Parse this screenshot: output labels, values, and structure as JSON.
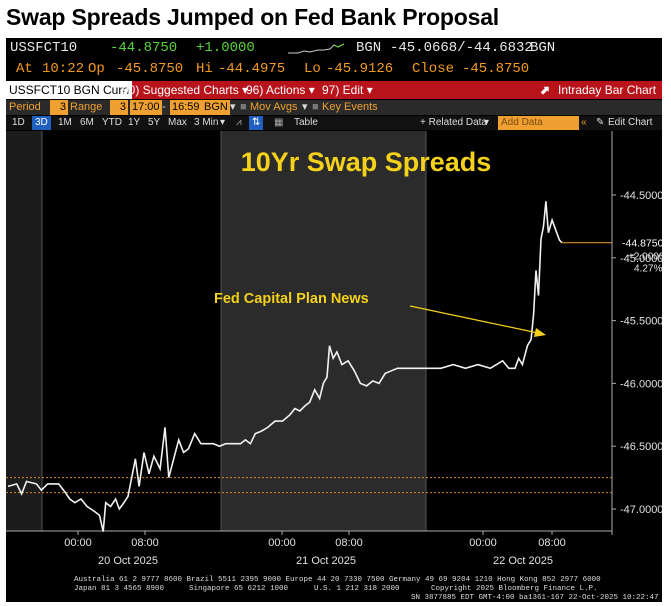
{
  "headline": "Swap Spreads Jumped on Fed Bank Proposal",
  "quote": {
    "ticker": "USSFCT10",
    "last": "-44.8750",
    "change": "+1.0000",
    "bgn_label": "BGN",
    "bid_ask": "-45.0668/-44.6832",
    "bgn_label2": "BGN",
    "at_label": "At",
    "time": "10:22",
    "op_label": "Op",
    "open": "-45.8750",
    "hi_label": "Hi",
    "high": "-44.4975",
    "lo_label": "Lo",
    "low": "-45.9126",
    "close_label": "Close",
    "close": "-45.8750"
  },
  "toolbar": {
    "security": "USSFCT10 BGN Curn",
    "suggested": "90) Suggested Charts",
    "actions": "96) Actions",
    "edit": "97) Edit",
    "view": "Intraday Bar Chart"
  },
  "options": {
    "period_label": "Period",
    "period_value": "3",
    "range_label": "Range",
    "range_value": "3",
    "start_time": "17:00",
    "end_time": "16:59",
    "source": "BGN",
    "mov_avgs": "Mov Avgs",
    "key_events": "Key Events"
  },
  "tabs": [
    "1D",
    "3D",
    "1M",
    "6M",
    "YTD",
    "1Y",
    "5Y",
    "Max",
    "3 Min"
  ],
  "active_tab": "3D",
  "tab_table": "Table",
  "related_data": "+ Related Data",
  "add_data": "Add Data",
  "edit_chart": "Edit Chart",
  "chart_data": {
    "type": "line",
    "title": "10Yr Swap Spreads",
    "annotation": "Fed Capital Plan News",
    "ylim": [
      -47.0,
      -44.3
    ],
    "y_ticks": [
      "-44.5000",
      "-45.0000",
      "-45.5000",
      "-46.0000",
      "-46.5000",
      "-47.0000"
    ],
    "x_ticks": [
      "00:00",
      "08:00",
      "00:00",
      "08:00",
      "00:00",
      "08:00"
    ],
    "day_labels": [
      "20 Oct 2025",
      "21 Oct 2025",
      "22 Oct 2025"
    ],
    "last_value_label": "-44.8750",
    "change_label": "+2.0000",
    "pct_label": "4.27%",
    "ref_lines": [
      -46.75,
      -46.87
    ],
    "series": [
      {
        "values": [
          [
            0,
            -46.82
          ],
          [
            7,
            -46.8
          ],
          [
            11,
            -46.88
          ],
          [
            15,
            -46.78
          ],
          [
            23,
            -46.8
          ],
          [
            27,
            -46.85
          ],
          [
            32,
            -46.8
          ],
          [
            41,
            -46.8
          ],
          [
            45,
            -46.85
          ],
          [
            50,
            -46.92
          ],
          [
            54,
            -46.95
          ],
          [
            59,
            -46.92
          ],
          [
            64,
            -46.98
          ],
          [
            70,
            -47.02
          ],
          [
            74,
            -47.05
          ],
          [
            77,
            -47.18
          ],
          [
            79,
            -46.95
          ],
          [
            83,
            -46.98
          ],
          [
            87,
            -46.92
          ],
          [
            90,
            -47.0
          ],
          [
            93,
            -46.96
          ],
          [
            97,
            -46.9
          ],
          [
            100,
            -46.75
          ],
          [
            103,
            -46.6
          ],
          [
            106,
            -46.82
          ],
          [
            110,
            -46.55
          ],
          [
            114,
            -46.72
          ],
          [
            118,
            -46.58
          ],
          [
            123,
            -46.68
          ],
          [
            127,
            -46.35
          ],
          [
            130,
            -46.75
          ],
          [
            134,
            -46.6
          ],
          [
            138,
            -46.45
          ],
          [
            142,
            -46.55
          ],
          [
            146,
            -46.52
          ],
          [
            151,
            -46.4
          ],
          [
            156,
            -46.48
          ],
          [
            161,
            -46.48
          ],
          [
            166,
            -46.48
          ],
          [
            171,
            -46.5
          ],
          [
            176,
            -46.48
          ],
          [
            182,
            -46.48
          ],
          [
            188,
            -46.48
          ],
          [
            192,
            -46.45
          ],
          [
            196,
            -46.48
          ],
          [
            200,
            -46.4
          ],
          [
            205,
            -46.38
          ],
          [
            210,
            -46.35
          ],
          [
            216,
            -46.3
          ],
          [
            222,
            -46.3
          ],
          [
            228,
            -46.25
          ],
          [
            232,
            -46.2
          ],
          [
            236,
            -46.22
          ],
          [
            240,
            -46.18
          ],
          [
            244,
            -46.15
          ],
          [
            248,
            -46.05
          ],
          [
            252,
            -46.12
          ],
          [
            255,
            -46.0
          ],
          [
            258,
            -45.95
          ],
          [
            260,
            -45.7
          ],
          [
            263,
            -45.8
          ],
          [
            266,
            -45.75
          ],
          [
            270,
            -45.85
          ],
          [
            275,
            -45.82
          ],
          [
            280,
            -45.9
          ],
          [
            285,
            -46.0
          ],
          [
            290,
            -46.02
          ],
          [
            295,
            -45.98
          ],
          [
            300,
            -46.0
          ],
          [
            305,
            -45.92
          ],
          [
            310,
            -45.9
          ],
          [
            315,
            -45.88
          ],
          [
            320,
            -45.88
          ],
          [
            330,
            -45.88
          ],
          [
            340,
            -45.88
          ],
          [
            350,
            -45.88
          ],
          [
            360,
            -45.85
          ],
          [
            370,
            -45.88
          ],
          [
            380,
            -45.85
          ],
          [
            390,
            -45.88
          ],
          [
            395,
            -45.85
          ],
          [
            400,
            -45.82
          ],
          [
            405,
            -45.88
          ],
          [
            410,
            -45.88
          ],
          [
            413,
            -45.8
          ],
          [
            416,
            -45.85
          ],
          [
            420,
            -45.7
          ],
          [
            423,
            -45.65
          ],
          [
            425,
            -45.45
          ],
          [
            427,
            -45.1
          ],
          [
            429,
            -45.3
          ],
          [
            431,
            -44.85
          ],
          [
            433,
            -44.75
          ],
          [
            435,
            -44.55
          ],
          [
            437,
            -44.8
          ],
          [
            440,
            -44.7
          ],
          [
            443,
            -44.78
          ],
          [
            446,
            -44.86
          ],
          [
            448,
            -44.88
          ]
        ]
      }
    ]
  },
  "footer": {
    "line1": "Australia 61 2 9777 8600 Brazil 5511 2395 9000 Europe 44 20 7330 7500 Germany 49 69 9204 1210 Hong Kong 852 2977 6000",
    "line2a": "Japan 81 3 4565 8900",
    "line2b": "Singapore 65 6212 1000",
    "line2c": "U.S. 1 212 318 2000",
    "line2d": "Copyright 2025 Bloomberg Finance L.P.",
    "line3": "SN 3877885 EDT  GMT-4:00 ba1361-167 22-Oct-2025 10:22:47"
  }
}
